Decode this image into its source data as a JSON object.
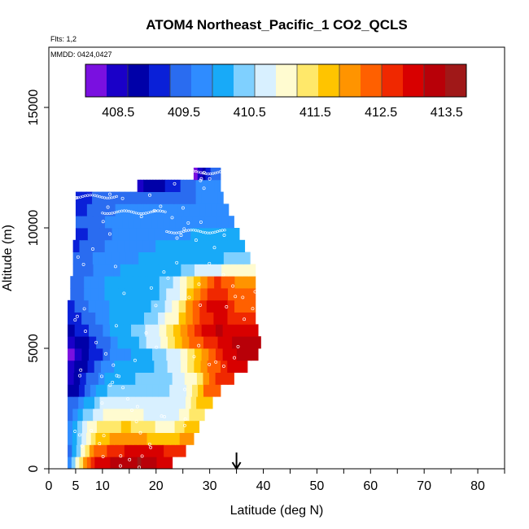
{
  "chart_data": {
    "type": "heatmap",
    "title": "ATOM4 Northeast_Pacific_1 CO2_QCLS",
    "flights_note": "Flts: 1,2",
    "dates_note": "MMDD: 0424,0427",
    "xlabel": "Latitude (deg N)",
    "ylabel": "Altitude (m)",
    "xlim": [
      0,
      85
    ],
    "ylim": [
      0,
      17500
    ],
    "x_ticks": [
      0,
      5,
      10,
      20,
      30,
      40,
      50,
      60,
      70,
      80
    ],
    "x_minor_ticks": [
      15,
      25,
      35,
      45,
      55,
      65,
      75,
      85
    ],
    "y_ticks": [
      0,
      5000,
      10000,
      15000
    ],
    "marker_latitude": 35,
    "colorbar": {
      "range": [
        408.0,
        413.8
      ],
      "ticks": [
        408.5,
        409.5,
        410.5,
        411.5,
        412.5,
        413.5
      ],
      "colors": [
        "#7a10e0",
        "#1a00c8",
        "#0000a8",
        "#0a20d8",
        "#2a6cf0",
        "#2f8cff",
        "#18aaf8",
        "#7fd0ff",
        "#d8f0ff",
        "#fffbd0",
        "#ffe86a",
        "#ffc400",
        "#ff9400",
        "#ff6000",
        "#f02800",
        "#d80000",
        "#b80008",
        "#a01818"
      ]
    },
    "altitude_layers": [
      {
        "alt": [
          0,
          500
        ],
        "lat": [
          3.5,
          23
        ],
        "values": [
          409.8,
          411.5,
          412.8,
          413.0,
          413.3,
          413.4,
          413.5,
          413.3,
          413.0
        ]
      },
      {
        "alt": [
          500,
          1000
        ],
        "lat": [
          3.5,
          25.5
        ],
        "values": [
          409.5,
          411.0,
          412.3,
          412.6,
          412.8,
          413.0,
          413.1,
          412.9,
          412.6
        ]
      },
      {
        "alt": [
          1000,
          1500
        ],
        "lat": [
          3.5,
          27
        ],
        "values": [
          409.7,
          410.8,
          411.6,
          411.9,
          412.0,
          411.9,
          411.8,
          411.6,
          411.9
        ]
      },
      {
        "alt": [
          1500,
          2000
        ],
        "lat": [
          3.5,
          28
        ],
        "values": [
          409.8,
          410.8,
          411.4,
          411.5,
          411.6,
          411.4,
          411.2,
          411.1,
          411.6
        ]
      },
      {
        "alt": [
          2000,
          2500
        ],
        "lat": [
          3.5,
          29
        ],
        "values": [
          409.5,
          410.3,
          410.9,
          411.1,
          411.0,
          410.9,
          410.8,
          410.9,
          411.3
        ]
      },
      {
        "alt": [
          2500,
          3000
        ],
        "lat": [
          3.5,
          30.5
        ],
        "values": [
          409.3,
          410.0,
          410.6,
          410.7,
          410.7,
          410.6,
          410.6,
          410.9,
          411.7
        ]
      },
      {
        "alt": [
          3000,
          3500
        ],
        "lat": [
          3.5,
          32
        ],
        "values": [
          408.7,
          409.5,
          410.2,
          410.4,
          410.5,
          410.4,
          410.6,
          411.0,
          412.2
        ]
      },
      {
        "alt": [
          3500,
          4000
        ],
        "lat": [
          3.5,
          34.5
        ],
        "values": [
          408.5,
          409.3,
          410.0,
          410.2,
          410.3,
          410.4,
          410.8,
          411.4,
          412.8
        ]
      },
      {
        "alt": [
          4000,
          4500
        ],
        "lat": [
          3.5,
          37
        ],
        "values": [
          408.4,
          409.2,
          409.9,
          410.1,
          410.2,
          410.6,
          411.3,
          412.2,
          413.1
        ]
      },
      {
        "alt": [
          4500,
          5000
        ],
        "lat": [
          3.5,
          39
        ],
        "values": [
          408.3,
          409.0,
          409.7,
          410.0,
          410.3,
          410.9,
          411.8,
          412.7,
          413.3
        ]
      },
      {
        "alt": [
          5000,
          5500
        ],
        "lat": [
          3.5,
          39.5
        ],
        "values": [
          408.5,
          409.2,
          409.8,
          410.2,
          410.8,
          411.6,
          412.5,
          413.0,
          413.3
        ]
      },
      {
        "alt": [
          5500,
          6000
        ],
        "lat": [
          3.5,
          39
        ],
        "values": [
          408.8,
          409.4,
          410.0,
          410.3,
          410.8,
          411.8,
          412.8,
          413.2,
          413.0
        ]
      },
      {
        "alt": [
          6000,
          6500
        ],
        "lat": [
          3.5,
          38.5
        ],
        "values": [
          409.0,
          409.6,
          410.0,
          410.1,
          410.4,
          411.2,
          412.4,
          413.0,
          412.7
        ]
      },
      {
        "alt": [
          6500,
          7000
        ],
        "lat": [
          3.5,
          38.5
        ],
        "values": [
          409.2,
          409.7,
          410.0,
          410.1,
          410.3,
          411.0,
          412.3,
          413.1,
          412.5
        ]
      },
      {
        "alt": [
          7000,
          7500
        ],
        "lat": [
          4,
          38.5
        ],
        "values": [
          409.3,
          409.8,
          410.1,
          410.1,
          410.2,
          410.8,
          412.0,
          412.8,
          412.2
        ]
      },
      {
        "alt": [
          7500,
          8000
        ],
        "lat": [
          4,
          38.5
        ],
        "values": [
          409.3,
          409.8,
          410.0,
          410.1,
          410.2,
          410.6,
          411.8,
          412.6,
          412.0
        ]
      },
      {
        "alt": [
          8000,
          8500
        ],
        "lat": [
          4.5,
          38.5
        ],
        "values": [
          409.3,
          409.7,
          409.9,
          410.0,
          410.0,
          410.2,
          410.6,
          410.9,
          411.2
        ]
      },
      {
        "alt": [
          8500,
          9000
        ],
        "lat": [
          4.5,
          37.5
        ],
        "values": [
          409.3,
          409.7,
          409.9,
          409.9,
          410.0,
          410.0,
          410.1,
          410.2,
          410.3
        ]
      },
      {
        "alt": [
          9000,
          9500
        ],
        "lat": [
          4.5,
          36.5
        ],
        "values": [
          409.2,
          409.5,
          409.8,
          409.9,
          409.9,
          410.0,
          410.0,
          410.1,
          410.1
        ]
      },
      {
        "alt": [
          9500,
          10000
        ],
        "lat": [
          5,
          35.5
        ],
        "values": [
          409.2,
          409.4,
          409.7,
          409.8,
          409.9,
          409.9,
          409.9,
          410.0,
          410.0
        ]
      },
      {
        "alt": [
          10000,
          10500
        ],
        "lat": [
          5,
          34.5
        ],
        "values": [
          409.3,
          409.5,
          409.7,
          409.8,
          409.8,
          409.9,
          409.9,
          409.9,
          409.9
        ]
      },
      {
        "alt": [
          10500,
          11000
        ],
        "lat": [
          5,
          33.5
        ],
        "values": [
          409.2,
          409.4,
          409.6,
          409.7,
          409.8,
          409.8,
          409.8,
          409.8,
          409.8
        ]
      },
      {
        "alt": [
          11000,
          11500
        ],
        "lat": [
          5,
          32.5
        ],
        "values": [
          409.2,
          409.3,
          409.5,
          409.5,
          409.6,
          409.6,
          409.6,
          409.6,
          409.7
        ]
      },
      {
        "alt": [
          11500,
          12000
        ],
        "lat": [
          16.5,
          32
        ],
        "values": [
          408.6,
          408.7,
          408.9,
          409.0,
          409.2,
          409.4,
          409.6,
          409.7,
          409.7
        ]
      },
      {
        "alt": [
          12000,
          12500
        ],
        "lat": [
          27,
          32
        ],
        "values": [
          408.2,
          408.3,
          408.5,
          408.7,
          409.0,
          409.2,
          409.4,
          409.5,
          409.6
        ]
      }
    ]
  }
}
